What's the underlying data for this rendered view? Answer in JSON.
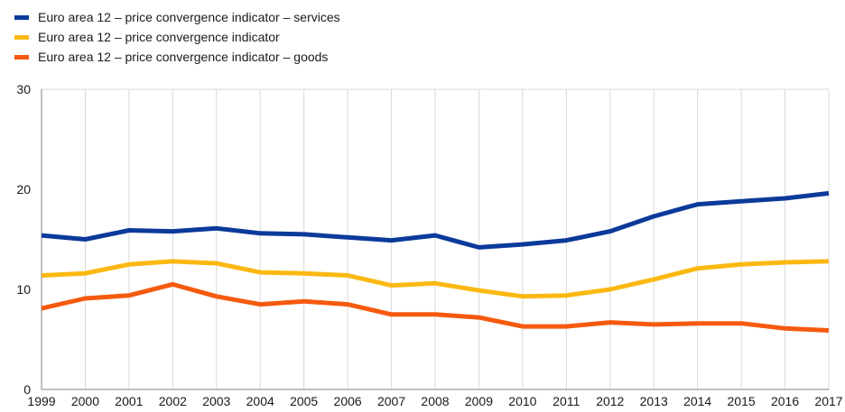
{
  "chart_data": {
    "type": "line",
    "title": "",
    "xlabel": "",
    "ylabel": "",
    "x": [
      "1999",
      "2000",
      "2001",
      "2002",
      "2003",
      "2004",
      "2005",
      "2006",
      "2007",
      "2008",
      "2009",
      "2010",
      "2011",
      "2012",
      "2013",
      "2014",
      "2015",
      "2016",
      "2017"
    ],
    "ylim": [
      0,
      30
    ],
    "yticks": [
      0,
      10,
      20,
      30
    ],
    "grid": "vertical",
    "legend_position": "top-left",
    "series": [
      {
        "name": "Euro area 12 – price convergence indicator – services",
        "color": "#0b3a9a",
        "values": [
          15.4,
          15.0,
          15.9,
          15.8,
          16.1,
          15.6,
          15.5,
          15.2,
          14.9,
          15.4,
          14.2,
          14.5,
          14.9,
          15.8,
          17.3,
          18.5,
          18.8,
          19.1,
          19.6
        ]
      },
      {
        "name": "Euro area 12 – price convergence indicator",
        "color": "#fbb812",
        "values": [
          11.4,
          11.6,
          12.5,
          12.8,
          12.6,
          11.7,
          11.6,
          11.4,
          10.4,
          10.6,
          9.9,
          9.3,
          9.4,
          10.0,
          11.0,
          12.1,
          12.5,
          12.7,
          12.8
        ]
      },
      {
        "name": "Euro area 12 – price convergence indicator – goods",
        "color": "#f55a0e",
        "values": [
          8.1,
          9.1,
          9.4,
          10.5,
          9.3,
          8.5,
          8.8,
          8.5,
          7.5,
          7.5,
          7.2,
          6.3,
          6.3,
          6.7,
          6.5,
          6.6,
          6.6,
          6.1,
          5.9
        ]
      }
    ]
  }
}
